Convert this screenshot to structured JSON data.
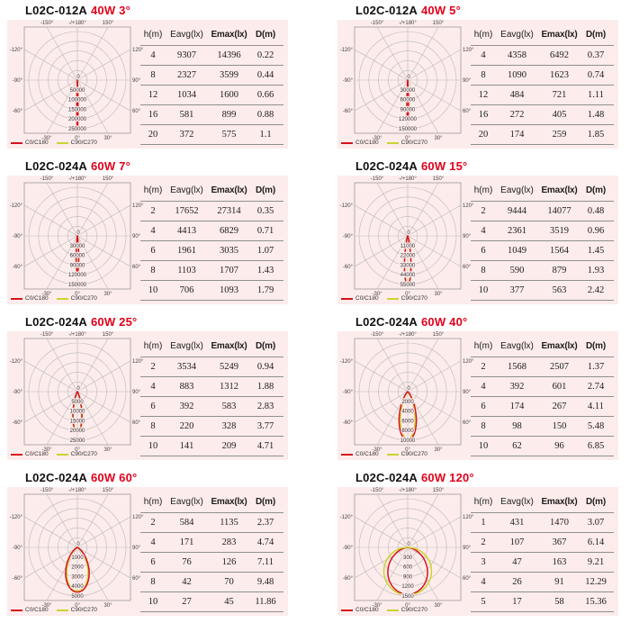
{
  "colors": {
    "page_bg": "#ffffff",
    "panel_bg": "#fdecec",
    "grid_line": "#b9b9b9",
    "box_border": "#9a9a9a",
    "table_line": "#8f8f8f",
    "title_red": "#e2001a",
    "c0_red": "#d6131c",
    "c90_yellow": "#ccd32f",
    "text": "#1c1c1c"
  },
  "table_headers": [
    "h(m)",
    "Eavg(lx)",
    "Emax(lx)",
    "D(m)"
  ],
  "legend": [
    {
      "label": "C0/C180",
      "color": "#d6131c"
    },
    {
      "label": "C90/C270",
      "color": "#ccd32f"
    }
  ],
  "angle_labels": {
    "top": [
      "-150°",
      "-/+180°",
      "150°"
    ],
    "left": [
      "-120°",
      "-90°",
      "-60°"
    ],
    "right": [
      "120°",
      "90°",
      "60°"
    ],
    "bottom": [
      "-30°",
      "0°",
      "30°"
    ]
  },
  "chart_data": [
    {
      "type": "polar",
      "title_model": "L02C-012A",
      "title_spec": "40W 3°",
      "scale_max": 250000,
      "center_label": "0",
      "ring_labels": [
        "50000",
        "100000",
        "150000",
        "200000",
        "250000"
      ],
      "series": [
        {
          "name": "C90/C270",
          "color": "#ccd32f",
          "peak": 243000,
          "beam_deg": 3
        },
        {
          "name": "C0/C180",
          "color": "#d6131c",
          "peak": 245000,
          "beam_deg": 3
        }
      ],
      "table_rows": [
        [
          "4",
          "9307",
          "14396",
          "0.22"
        ],
        [
          "8",
          "2327",
          "3599",
          "0.44"
        ],
        [
          "12",
          "1034",
          "1600",
          "0.66"
        ],
        [
          "16",
          "581",
          "899",
          "0.88"
        ],
        [
          "20",
          "372",
          "575",
          "1.1"
        ]
      ]
    },
    {
      "type": "polar",
      "title_model": "L02C-012A",
      "title_spec": "40W 5°",
      "scale_max": 150000,
      "center_label": "0",
      "ring_labels": [
        "30000",
        "60000",
        "90000",
        "120000",
        "150000"
      ],
      "series": [
        {
          "name": "C90/C270",
          "color": "#ccd32f",
          "peak": 120000,
          "beam_deg": 4.5
        },
        {
          "name": "C0/C180",
          "color": "#d6131c",
          "peak": 122000,
          "beam_deg": 4.5
        }
      ],
      "table_rows": [
        [
          "4",
          "4358",
          "6492",
          "0.37"
        ],
        [
          "8",
          "1090",
          "1623",
          "0.74"
        ],
        [
          "12",
          "484",
          "721",
          "1.11"
        ],
        [
          "16",
          "272",
          "405",
          "1.48"
        ],
        [
          "20",
          "174",
          "259",
          "1.85"
        ]
      ]
    },
    {
      "type": "polar",
      "title_model": "L02C-024A",
      "title_spec": "60W 7°",
      "scale_max": 150000,
      "center_label": "0",
      "ring_labels": [
        "30000",
        "60000",
        "90000",
        "120000",
        "150000"
      ],
      "series": [
        {
          "name": "C90/C270",
          "color": "#ccd32f",
          "peak": 110000,
          "beam_deg": 8
        },
        {
          "name": "C0/C180",
          "color": "#d6131c",
          "peak": 112000,
          "beam_deg": 8
        }
      ],
      "table_rows": [
        [
          "2",
          "17652",
          "27314",
          "0.35"
        ],
        [
          "4",
          "4413",
          "6829",
          "0.71"
        ],
        [
          "6",
          "1961",
          "3035",
          "1.07"
        ],
        [
          "8",
          "1103",
          "1707",
          "1.43"
        ],
        [
          "10",
          "706",
          "1093",
          "1.79"
        ]
      ]
    },
    {
      "type": "polar",
      "title_model": "L02C-024A",
      "title_spec": "60W 15°",
      "scale_max": 55000,
      "center_label": "0",
      "ring_labels": [
        "11000",
        "22000",
        "33000",
        "44000",
        "55000"
      ],
      "series": [
        {
          "name": "C90/C270",
          "color": "#ccd32f",
          "peak": 54500,
          "beam_deg": 14
        },
        {
          "name": "C0/C180",
          "color": "#d6131c",
          "peak": 55500,
          "beam_deg": 15
        }
      ],
      "table_rows": [
        [
          "2",
          "9444",
          "14077",
          "0.48"
        ],
        [
          "4",
          "2361",
          "3519",
          "0.96"
        ],
        [
          "6",
          "1049",
          "1564",
          "1.45"
        ],
        [
          "8",
          "590",
          "879",
          "1.93"
        ],
        [
          "10",
          "377",
          "563",
          "2.42"
        ]
      ]
    },
    {
      "type": "polar",
      "title_model": "L02C-024A",
      "title_spec": "60W 25°",
      "scale_max": 25000,
      "center_label": "0",
      "ring_labels": [
        "5000",
        "10000",
        "15000",
        "20000",
        "25000"
      ],
      "series": [
        {
          "name": "C90/C270",
          "color": "#ccd32f",
          "peak": 20600,
          "beam_deg": 23
        },
        {
          "name": "C0/C180",
          "color": "#d6131c",
          "peak": 21000,
          "beam_deg": 25
        }
      ],
      "table_rows": [
        [
          "2",
          "3534",
          "5249",
          "0.94"
        ],
        [
          "4",
          "883",
          "1312",
          "1.88"
        ],
        [
          "6",
          "392",
          "583",
          "2.83"
        ],
        [
          "8",
          "220",
          "328",
          "3.77"
        ],
        [
          "10",
          "141",
          "209",
          "4.71"
        ]
      ]
    },
    {
      "type": "polar",
      "title_model": "L02C-024A",
      "title_spec": "60W 40°",
      "scale_max": 10000,
      "center_label": "0",
      "ring_labels": [
        "2000",
        "4000",
        "6000",
        "8000",
        "10000"
      ],
      "series": [
        {
          "name": "C90/C270",
          "color": "#ccd32f",
          "peak": 9650,
          "beam_deg": 35
        },
        {
          "name": "C0/C180",
          "color": "#d6131c",
          "peak": 10000,
          "beam_deg": 40
        }
      ],
      "table_rows": [
        [
          "2",
          "1568",
          "2507",
          "1.37"
        ],
        [
          "4",
          "392",
          "601",
          "2.74"
        ],
        [
          "6",
          "174",
          "267",
          "4.11"
        ],
        [
          "8",
          "98",
          "150",
          "5.48"
        ],
        [
          "10",
          "62",
          "96",
          "6.85"
        ]
      ]
    },
    {
      "type": "polar",
      "title_model": "L02C-024A",
      "title_spec": "60W 60°",
      "scale_max": 5000,
      "center_label": "0",
      "ring_labels": [
        "1000",
        "2000",
        "3000",
        "4000",
        "5000"
      ],
      "series": [
        {
          "name": "C90/C270",
          "color": "#ccd32f",
          "peak": 4480,
          "beam_deg": 56
        },
        {
          "name": "C0/C180",
          "color": "#d6131c",
          "peak": 4600,
          "beam_deg": 60
        }
      ],
      "table_rows": [
        [
          "2",
          "584",
          "1135",
          "2.37"
        ],
        [
          "4",
          "171",
          "283",
          "4.74"
        ],
        [
          "6",
          "76",
          "126",
          "7.11"
        ],
        [
          "8",
          "42",
          "70",
          "9.48"
        ],
        [
          "10",
          "27",
          "45",
          "11.86"
        ]
      ]
    },
    {
      "type": "polar",
      "title_model": "L02C-024A",
      "title_spec": "60W 120°",
      "scale_max": 1500,
      "center_label": "0",
      "ring_labels": [
        "300",
        "600",
        "900",
        "1200",
        "1500"
      ],
      "series": [
        {
          "name": "C0/C180",
          "color": "#d6131c",
          "peak": 1445,
          "beam_deg": 100
        },
        {
          "name": "C90/C270",
          "color": "#ccd32f",
          "peak": 1470,
          "beam_deg": 120
        }
      ],
      "table_rows": [
        [
          "1",
          "431",
          "1470",
          "3.07"
        ],
        [
          "2",
          "107",
          "367",
          "6.14"
        ],
        [
          "3",
          "47",
          "163",
          "9.21"
        ],
        [
          "4",
          "26",
          "91",
          "12.29"
        ],
        [
          "5",
          "17",
          "58",
          "15.36"
        ]
      ]
    }
  ]
}
